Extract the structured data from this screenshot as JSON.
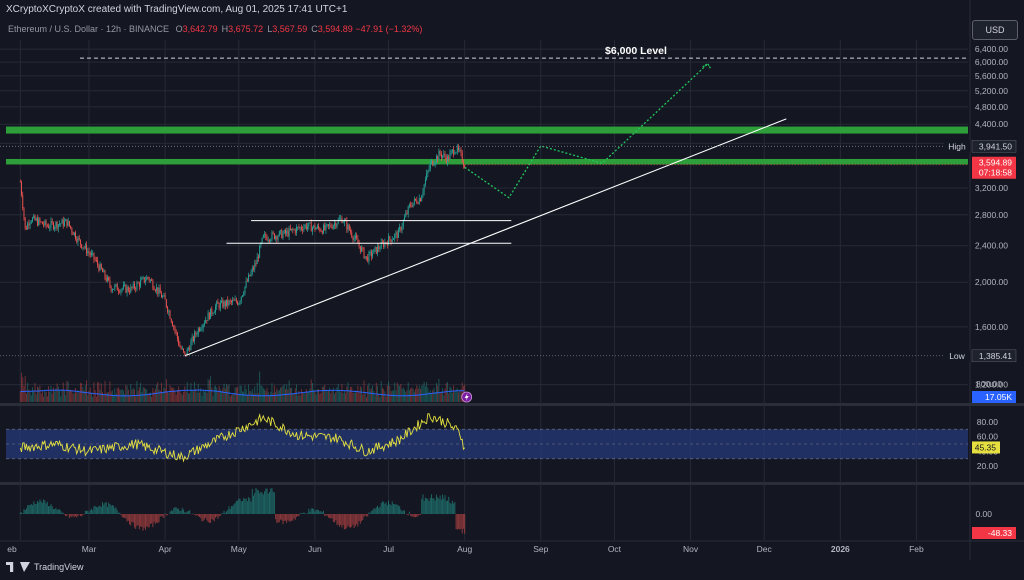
{
  "header": {
    "attribution": "XCryptoXCryptoX created with TradingView.com, Aug 01, 2025 17:41 UTC+1",
    "symbol": "Ethereum / U.S. Dollar · 12h · BINANCE",
    "ohlc": [
      {
        "k": "O",
        "v": "3,642.79"
      },
      {
        "k": "H",
        "v": "3,675.72"
      },
      {
        "k": "L",
        "v": "3,567.59"
      },
      {
        "k": "C",
        "v": "3,594.89"
      }
    ],
    "change": "−47.91 (−1.32%)",
    "currency_button": "USD"
  },
  "footer": {
    "brand": "TradingView"
  },
  "colors": {
    "background": "#141722",
    "grid": "#262a36",
    "up": "#26a69a",
    "down": "#ef5350",
    "zone": "#2e9e3a",
    "projection": "#22c55e",
    "rsi": "#e5e040",
    "rsi_band": "#243a7a",
    "volume_ma": "#2962ff",
    "price_badge": "#f23645",
    "axis_badge": "#2962ff"
  },
  "chart_data": {
    "type": "candlestick",
    "interval": "12h",
    "y_scale": "log",
    "price_range": [
      1100,
      6700
    ],
    "price_ticks": [
      "6,400.00",
      "6,000.00",
      "5,600.00",
      "5,200.00",
      "4,800.00",
      "4,400.00",
      "4,000.00",
      "3,200.00",
      "2,800.00",
      "2,400.00",
      "2,000.00",
      "1,600.00",
      "1,200.00"
    ],
    "x_ticks": [
      "eb",
      "Mar",
      "Apr",
      "May",
      "Jun",
      "Jul",
      "Aug",
      "Sep",
      "Oct",
      "Nov",
      "Dec",
      "2026",
      "Feb"
    ],
    "price_path": [
      {
        "t": "2025-02-01",
        "p": 3300
      },
      {
        "t": "2025-02-03",
        "p": 2600
      },
      {
        "t": "2025-02-05",
        "p": 2750
      },
      {
        "t": "2025-02-12",
        "p": 2650
      },
      {
        "t": "2025-02-20",
        "p": 2700
      },
      {
        "t": "2025-02-25",
        "p": 2450
      },
      {
        "t": "2025-03-03",
        "p": 2250
      },
      {
        "t": "2025-03-10",
        "p": 1950
      },
      {
        "t": "2025-03-18",
        "p": 1930
      },
      {
        "t": "2025-03-25",
        "p": 2050
      },
      {
        "t": "2025-04-01",
        "p": 1820
      },
      {
        "t": "2025-04-07",
        "p": 1450
      },
      {
        "t": "2025-04-09",
        "p": 1385
      },
      {
        "t": "2025-04-15",
        "p": 1600
      },
      {
        "t": "2025-04-22",
        "p": 1780
      },
      {
        "t": "2025-05-01",
        "p": 1820
      },
      {
        "t": "2025-05-08",
        "p": 2200
      },
      {
        "t": "2025-05-11",
        "p": 2500
      },
      {
        "t": "2025-05-20",
        "p": 2550
      },
      {
        "t": "2025-05-28",
        "p": 2650
      },
      {
        "t": "2025-06-05",
        "p": 2600
      },
      {
        "t": "2025-06-12",
        "p": 2750
      },
      {
        "t": "2025-06-18",
        "p": 2450
      },
      {
        "t": "2025-06-22",
        "p": 2250
      },
      {
        "t": "2025-06-30",
        "p": 2450
      },
      {
        "t": "2025-07-05",
        "p": 2550
      },
      {
        "t": "2025-07-10",
        "p": 2950
      },
      {
        "t": "2025-07-14",
        "p": 3050
      },
      {
        "t": "2025-07-18",
        "p": 3600
      },
      {
        "t": "2025-07-22",
        "p": 3800
      },
      {
        "t": "2025-07-25",
        "p": 3700
      },
      {
        "t": "2025-07-28",
        "p": 3900
      },
      {
        "t": "2025-07-30",
        "p": 3800
      },
      {
        "t": "2025-08-01",
        "p": 3594.89
      }
    ],
    "current_price": {
      "value": "3,594.89",
      "countdown": "07:18:58"
    },
    "high": {
      "label": "High",
      "value": "3,941.50"
    },
    "low": {
      "label": "Low",
      "value": "1,385.41"
    },
    "resistance_zones": [
      [
        4200,
        4350
      ],
      [
        3600,
        3700
      ]
    ],
    "level_6000": {
      "price": 6000,
      "label": "$6,000 Level"
    },
    "trendline": {
      "from": {
        "t": "2025-04-09",
        "p": 1385
      },
      "to": {
        "t": "2025-12-10",
        "p": 4520
      }
    },
    "range_lines": [
      {
        "from": "2025-05-06",
        "to": "2025-08-20",
        "p": 2720
      },
      {
        "from": "2025-04-26",
        "to": "2025-08-20",
        "p": 2430
      }
    ],
    "projection": [
      {
        "t": "2025-08-01",
        "p": 3550
      },
      {
        "t": "2025-08-19",
        "p": 3050
      },
      {
        "t": "2025-09-01",
        "p": 3950
      },
      {
        "t": "2025-09-26",
        "p": 3620
      },
      {
        "t": "2025-11-08",
        "p": 5950
      }
    ],
    "volume": {
      "axis_ticks": [
        "800.00"
      ],
      "ma_value": "17.05K"
    },
    "rsi": {
      "range": [
        0,
        100
      ],
      "axis_ticks": [
        "80.00",
        "60.00",
        "40.00",
        "20.00"
      ],
      "band": [
        30,
        70
      ],
      "value": "45.35",
      "path": [
        {
          "t": "2025-02-01",
          "v": 45
        },
        {
          "t": "2025-02-15",
          "v": 50
        },
        {
          "t": "2025-03-01",
          "v": 40
        },
        {
          "t": "2025-03-20",
          "v": 50
        },
        {
          "t": "2025-04-08",
          "v": 32
        },
        {
          "t": "2025-04-25",
          "v": 60
        },
        {
          "t": "2025-05-11",
          "v": 85
        },
        {
          "t": "2025-05-25",
          "v": 62
        },
        {
          "t": "2025-06-10",
          "v": 58
        },
        {
          "t": "2025-06-22",
          "v": 40
        },
        {
          "t": "2025-07-05",
          "v": 55
        },
        {
          "t": "2025-07-18",
          "v": 88
        },
        {
          "t": "2025-07-25",
          "v": 78
        },
        {
          "t": "2025-07-30",
          "v": 65
        },
        {
          "t": "2025-08-01",
          "v": 45
        }
      ]
    },
    "macd": {
      "axis_ticks": [
        "0.00"
      ],
      "value": "-48.33"
    }
  }
}
